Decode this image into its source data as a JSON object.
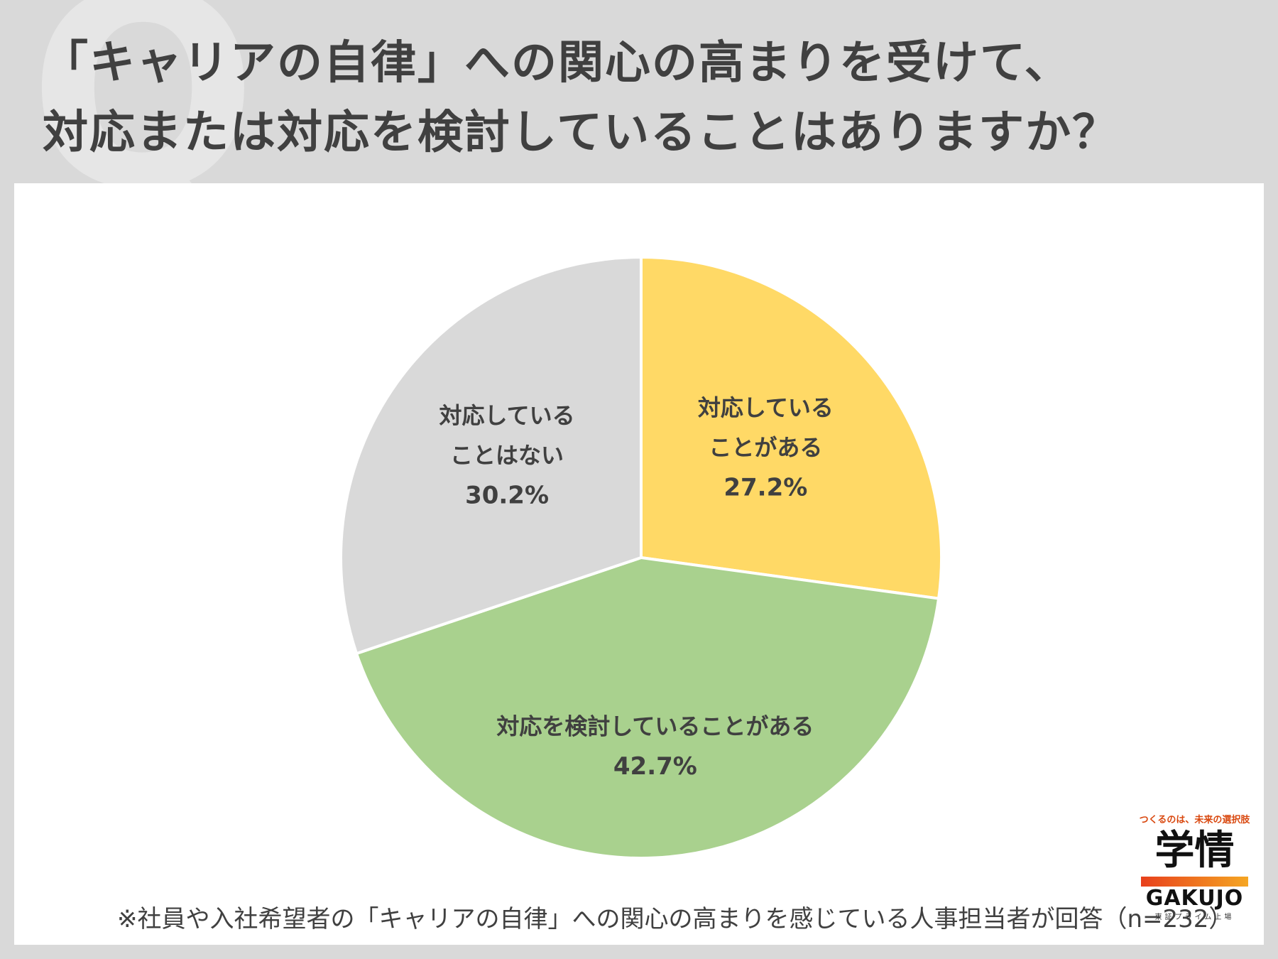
{
  "title": {
    "line1": "「キャリアの自律」への関心の高まりを受けて、",
    "line2": "対応または対応を検討していることはありますか？"
  },
  "watermark": "Q",
  "chart_data": {
    "type": "pie",
    "start_angle_deg": 0,
    "direction": "clockwise",
    "slices": [
      {
        "label_lines": [
          "対応している",
          "ことがある"
        ],
        "value": 27.2,
        "value_label": "27.2%",
        "color": "#ffd966"
      },
      {
        "label_lines": [
          "対応を検討していることがある"
        ],
        "value": 42.7,
        "value_label": "42.7%",
        "color": "#a9d18e"
      },
      {
        "label_lines": [
          "対応している",
          "ことはない"
        ],
        "value": 30.2,
        "value_label": "30.2%",
        "color": "#d9d9d9"
      }
    ]
  },
  "footnote": "※社員や入社希望者の「キャリアの自律」への関心の高まりを感じている人事担当者が回答（n=232）",
  "logo": {
    "tagline": "つくるのは、未来の選択肢",
    "kanji": "学情",
    "english": "GAKUJO",
    "subtitle": "東証プライム上場"
  }
}
